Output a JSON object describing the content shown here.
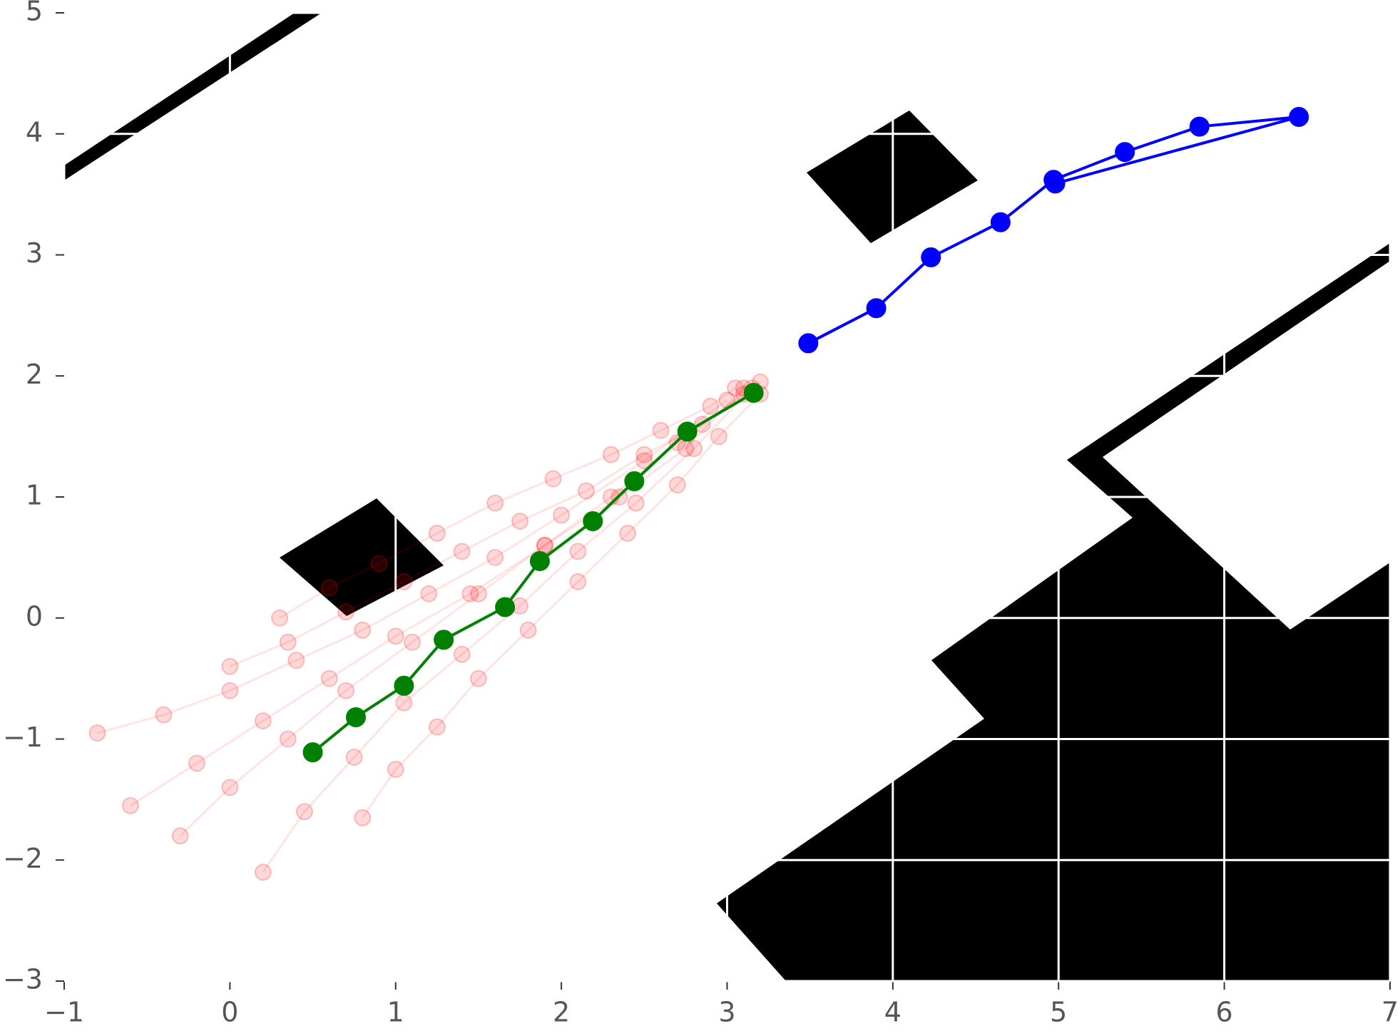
{
  "chart_data": {
    "type": "line",
    "xlim": [
      -1,
      7
    ],
    "ylim": [
      -3,
      5
    ],
    "xticks": [
      {
        "value": -1,
        "label": "−1"
      },
      0,
      1,
      2,
      3,
      4,
      5,
      6,
      7
    ],
    "yticks": [
      {
        "value": -3,
        "label": "−3"
      },
      {
        "value": -2,
        "label": "−2"
      },
      {
        "value": -1,
        "label": "−1"
      },
      0,
      1,
      2,
      3,
      4,
      5
    ],
    "grid": true,
    "series": [
      {
        "color": "red",
        "alpha": 0.15,
        "x": [
          -0.8,
          -0.4,
          0.0,
          0.4,
          0.8,
          1.2,
          1.6,
          2.0,
          2.5,
          3.0
        ],
        "y": [
          -0.95,
          -0.8,
          -0.6,
          -0.35,
          -0.1,
          0.2,
          0.5,
          0.85,
          1.3,
          1.8
        ]
      },
      {
        "color": "red",
        "alpha": 0.15,
        "x": [
          0.2,
          0.45,
          0.75,
          1.05,
          1.4,
          1.75,
          2.1,
          2.45,
          2.8,
          3.15
        ],
        "y": [
          -2.1,
          -1.6,
          -1.15,
          -0.7,
          -0.3,
          0.1,
          0.55,
          0.95,
          1.4,
          1.9
        ]
      },
      {
        "color": "red",
        "alpha": 0.15,
        "x": [
          -0.3,
          0.0,
          0.35,
          0.7,
          1.1,
          1.5,
          1.9,
          2.3,
          2.7,
          3.1
        ],
        "y": [
          -1.8,
          -1.4,
          -1.0,
          -0.6,
          -0.2,
          0.2,
          0.6,
          1.0,
          1.45,
          1.85
        ]
      },
      {
        "color": "red",
        "alpha": 0.15,
        "x": [
          0.0,
          0.35,
          0.7,
          1.05,
          1.4,
          1.75,
          2.15,
          2.5,
          2.85,
          3.2
        ],
        "y": [
          -0.4,
          -0.2,
          0.05,
          0.3,
          0.55,
          0.8,
          1.05,
          1.35,
          1.6,
          1.95
        ]
      },
      {
        "color": "red",
        "alpha": 0.15,
        "x": [
          0.8,
          1.0,
          1.25,
          1.5,
          1.8,
          2.1,
          2.4,
          2.7,
          2.95,
          3.2
        ],
        "y": [
          -1.65,
          -1.25,
          -0.9,
          -0.5,
          -0.1,
          0.3,
          0.7,
          1.1,
          1.5,
          1.85
        ]
      },
      {
        "color": "red",
        "alpha": 0.15,
        "x": [
          0.3,
          0.6,
          0.9,
          1.25,
          1.6,
          1.95,
          2.3,
          2.6,
          2.9,
          3.05
        ],
        "y": [
          0.0,
          0.25,
          0.45,
          0.7,
          0.95,
          1.15,
          1.35,
          1.55,
          1.75,
          1.9
        ]
      },
      {
        "color": "red",
        "alpha": 0.15,
        "x": [
          -0.6,
          -0.2,
          0.2,
          0.6,
          1.0,
          1.45,
          1.9,
          2.35,
          2.75,
          3.1
        ],
        "y": [
          -1.55,
          -1.2,
          -0.85,
          -0.5,
          -0.15,
          0.2,
          0.6,
          1.0,
          1.4,
          1.9
        ]
      },
      {
        "color": "green",
        "alpha": 1,
        "x": [
          0.5,
          0.76,
          1.05,
          1.29,
          1.66,
          1.87,
          2.19,
          2.44,
          2.76,
          3.16
        ],
        "y": [
          -1.11,
          -0.82,
          -0.56,
          -0.18,
          0.09,
          0.47,
          0.8,
          1.13,
          1.54,
          1.86
        ]
      },
      {
        "color": "blue",
        "alpha": 1,
        "x": [
          3.49,
          3.9,
          4.23,
          4.65,
          4.97,
          5.4,
          5.85,
          6.45,
          4.98
        ],
        "y": [
          2.27,
          2.56,
          2.98,
          3.27,
          3.62,
          3.85,
          4.06,
          4.14,
          3.59
        ]
      }
    ]
  }
}
